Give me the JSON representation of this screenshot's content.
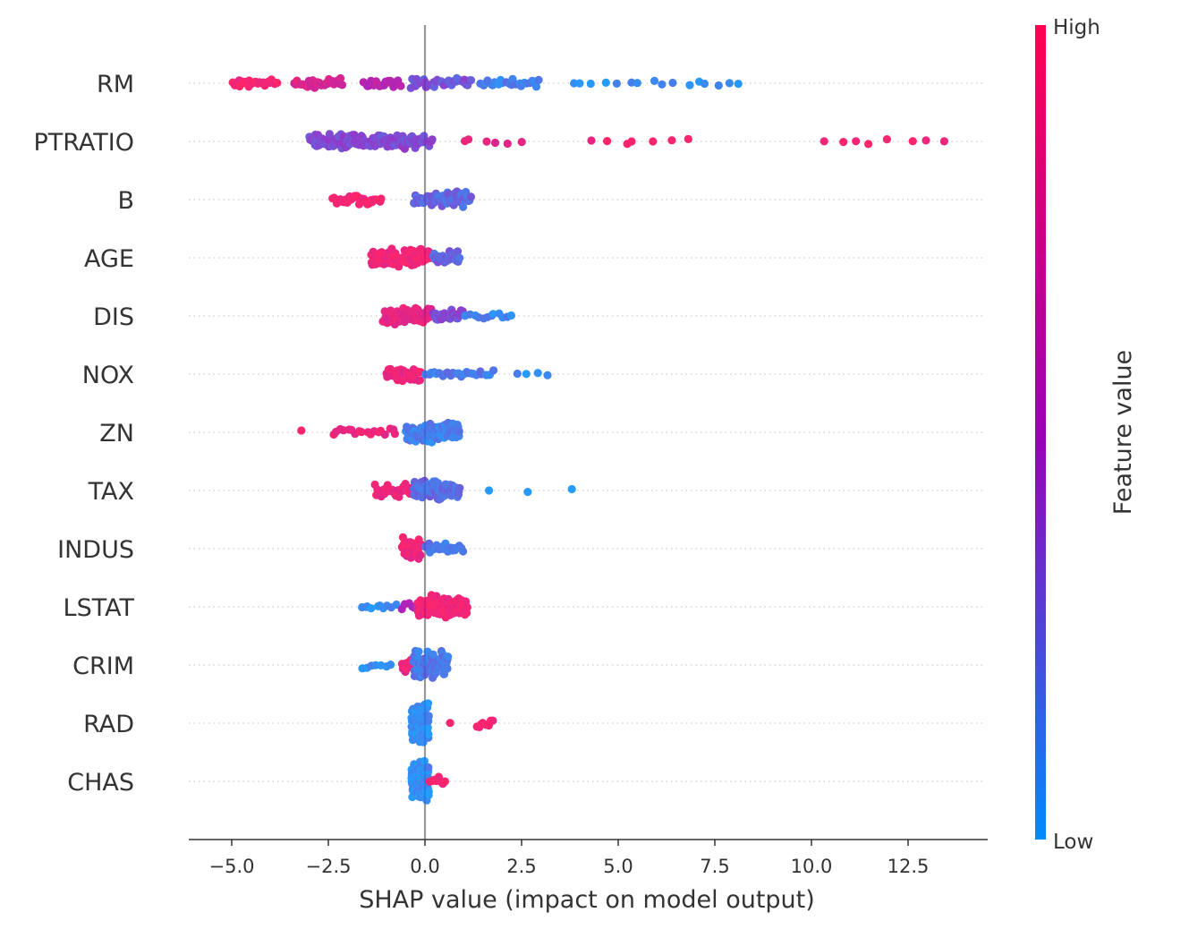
{
  "chart_data": {
    "type": "scatter",
    "subtype": "beeswarm",
    "title": "",
    "xlabel": "SHAP value (impact on model output)",
    "ylabel": "",
    "xlim": [
      -6.1,
      14.6
    ],
    "xticks": [
      -5.0,
      -2.5,
      0.0,
      2.5,
      5.0,
      7.5,
      10.0,
      12.5
    ],
    "xtick_labels": [
      "−5.0",
      "−2.5",
      "0.0",
      "2.5",
      "5.0",
      "7.5",
      "10.0",
      "12.5"
    ],
    "grid": false,
    "features": [
      "RM",
      "PTRATIO",
      "B",
      "AGE",
      "DIS",
      "NOX",
      "ZN",
      "TAX",
      "INDUS",
      "LSTAT",
      "CRIM",
      "RAD",
      "CHAS"
    ],
    "colorbar": {
      "label": "Feature value",
      "high_label": "High",
      "low_label": "Low",
      "high_color": "#ff0052",
      "mid_color": "#9b00b4",
      "low_color": "#008bfb"
    },
    "point_groups": [
      {
        "feature": "RM",
        "x_min": -5.0,
        "x_max": -3.8,
        "count": 24,
        "feature_value": 0.95
      },
      {
        "feature": "RM",
        "x_min": -3.4,
        "x_max": -2.1,
        "count": 30,
        "feature_value": 0.78
      },
      {
        "feature": "RM",
        "x_min": -1.6,
        "x_max": -0.6,
        "count": 20,
        "feature_value": 0.6
      },
      {
        "feature": "RM",
        "x_min": -0.4,
        "x_max": 1.2,
        "count": 38,
        "feature_value": 0.3
      },
      {
        "feature": "RM",
        "x_min": 1.4,
        "x_max": 3.0,
        "count": 24,
        "feature_value": 0.12
      },
      {
        "feature": "RM",
        "x_min": 3.7,
        "x_max": 8.4,
        "count": 16,
        "feature_value": 0.05
      },
      {
        "feature": "PTRATIO",
        "x_min": -3.0,
        "x_max": 0.2,
        "count": 140,
        "feature_value": 0.35
      },
      {
        "feature": "PTRATIO",
        "x_min": 0.8,
        "x_max": 2.6,
        "count": 6,
        "feature_value": 0.88
      },
      {
        "feature": "PTRATIO",
        "x_min": 4.0,
        "x_max": 7.0,
        "count": 7,
        "feature_value": 0.95
      },
      {
        "feature": "PTRATIO",
        "x_min": 10.0,
        "x_max": 13.6,
        "count": 8,
        "feature_value": 0.97
      },
      {
        "feature": "B",
        "x_min": -2.4,
        "x_max": -1.1,
        "count": 28,
        "feature_value": 0.95
      },
      {
        "feature": "B",
        "x_min": -0.3,
        "x_max": 1.2,
        "count": 70,
        "feature_value": 0.22
      },
      {
        "feature": "AGE",
        "x_min": -1.4,
        "x_max": 0.2,
        "count": 95,
        "feature_value": 0.93
      },
      {
        "feature": "AGE",
        "x_min": 0.2,
        "x_max": 0.9,
        "count": 30,
        "feature_value": 0.25
      },
      {
        "feature": "DIS",
        "x_min": -1.1,
        "x_max": 0.2,
        "count": 70,
        "feature_value": 0.85
      },
      {
        "feature": "DIS",
        "x_min": 0.2,
        "x_max": 1.0,
        "count": 28,
        "feature_value": 0.35
      },
      {
        "feature": "DIS",
        "x_min": 1.0,
        "x_max": 2.3,
        "count": 12,
        "feature_value": 0.1
      },
      {
        "feature": "NOX",
        "x_min": -1.0,
        "x_max": -0.1,
        "count": 40,
        "feature_value": 0.9
      },
      {
        "feature": "NOX",
        "x_min": 0.0,
        "x_max": 1.8,
        "count": 26,
        "feature_value": 0.15
      },
      {
        "feature": "NOX",
        "x_min": 2.3,
        "x_max": 3.2,
        "count": 4,
        "feature_value": 0.05
      },
      {
        "feature": "ZN",
        "x_min": -3.2,
        "x_max": -3.2,
        "count": 1,
        "feature_value": 0.97
      },
      {
        "feature": "ZN",
        "x_min": -2.4,
        "x_max": -0.7,
        "count": 18,
        "feature_value": 0.9
      },
      {
        "feature": "ZN",
        "x_min": -0.5,
        "x_max": 0.9,
        "count": 90,
        "feature_value": 0.12
      },
      {
        "feature": "TAX",
        "x_min": -1.3,
        "x_max": -0.3,
        "count": 35,
        "feature_value": 0.9
      },
      {
        "feature": "TAX",
        "x_min": -0.3,
        "x_max": 0.9,
        "count": 80,
        "feature_value": 0.2
      },
      {
        "feature": "TAX",
        "x_min": 1.4,
        "x_max": 4.1,
        "count": 3,
        "feature_value": 0.05
      },
      {
        "feature": "INDUS",
        "x_min": -0.6,
        "x_max": -0.1,
        "count": 40,
        "feature_value": 0.92
      },
      {
        "feature": "INDUS",
        "x_min": 0.0,
        "x_max": 1.0,
        "count": 26,
        "feature_value": 0.15
      },
      {
        "feature": "LSTAT",
        "x_min": -1.7,
        "x_max": -0.7,
        "count": 10,
        "feature_value": 0.05
      },
      {
        "feature": "LSTAT",
        "x_min": -0.6,
        "x_max": 0.3,
        "count": 12,
        "feature_value": 0.55
      },
      {
        "feature": "LSTAT",
        "x_min": -0.2,
        "x_max": 1.1,
        "count": 110,
        "feature_value": 0.93
      },
      {
        "feature": "CRIM",
        "x_min": -1.7,
        "x_max": -0.8,
        "count": 7,
        "feature_value": 0.05
      },
      {
        "feature": "CRIM",
        "x_min": -0.6,
        "x_max": -0.2,
        "count": 20,
        "feature_value": 0.9
      },
      {
        "feature": "CRIM",
        "x_min": -0.3,
        "x_max": 0.6,
        "count": 90,
        "feature_value": 0.15
      },
      {
        "feature": "RAD",
        "x_min": -0.35,
        "x_max": 0.1,
        "count": 130,
        "feature_value": 0.05
      },
      {
        "feature": "RAD",
        "x_min": 0.65,
        "x_max": 0.65,
        "count": 1,
        "feature_value": 0.97
      },
      {
        "feature": "RAD",
        "x_min": 1.3,
        "x_max": 1.8,
        "count": 8,
        "feature_value": 0.97
      },
      {
        "feature": "CHAS",
        "x_min": -0.35,
        "x_max": 0.1,
        "count": 150,
        "feature_value": 0.05
      },
      {
        "feature": "CHAS",
        "x_min": 0.1,
        "x_max": 0.55,
        "count": 10,
        "feature_value": 0.97
      }
    ]
  }
}
